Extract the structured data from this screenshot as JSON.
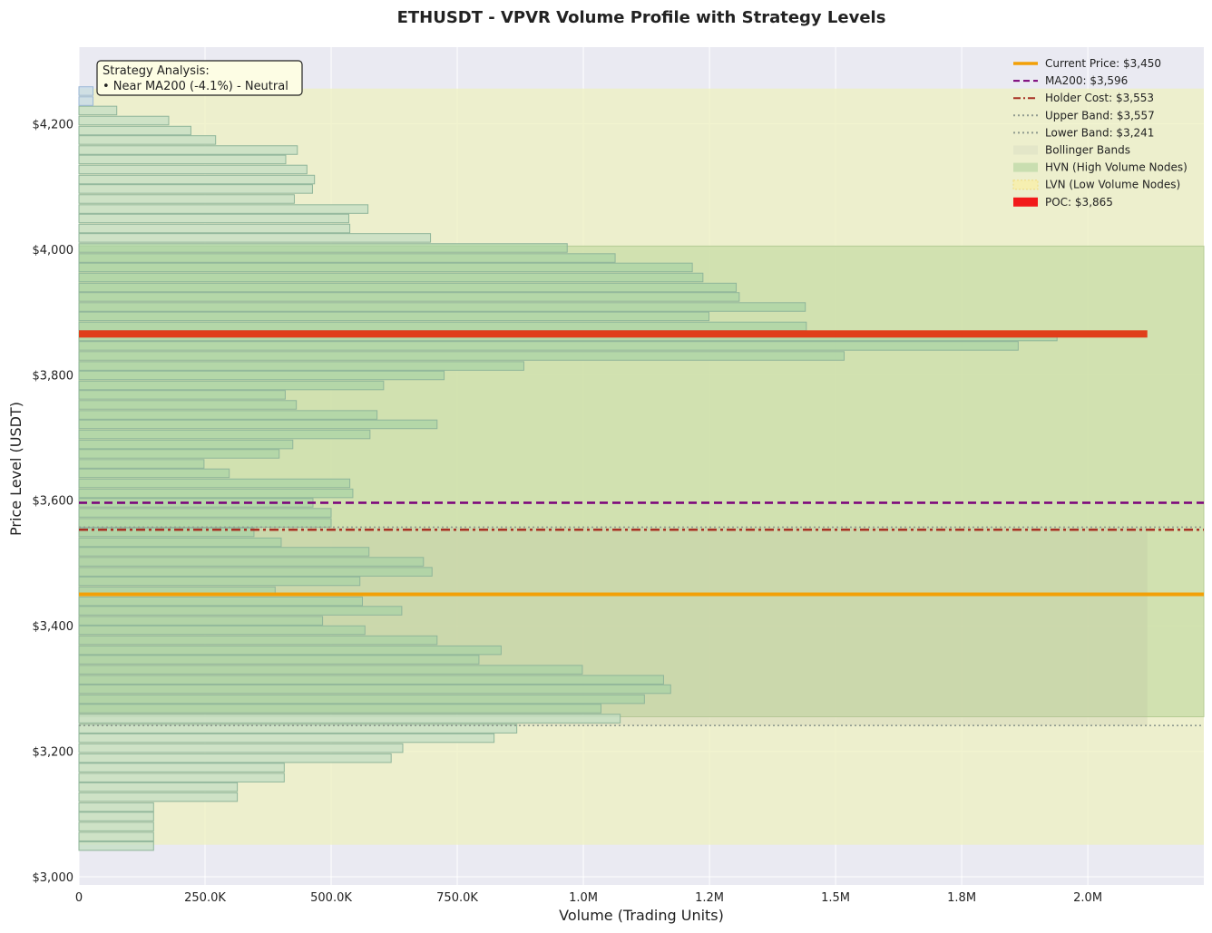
{
  "chart_data": {
    "type": "bar",
    "orientation": "horizontal",
    "title": "ETHUSDT - VPVR Volume Profile with Strategy Levels",
    "xlabel": "Volume (Trading Units)",
    "ylabel": "Price Level (USDT)",
    "xlim": [
      0,
      2230000
    ],
    "ylim": [
      2987,
      4322
    ],
    "x_ticks": [
      0,
      250000,
      500000,
      750000,
      1000000,
      1250000,
      1500000,
      1750000,
      2000000
    ],
    "x_tick_labels": [
      "0",
      "250.0K",
      "500.0K",
      "750.0K",
      "1.0M",
      "1.2M",
      "1.5M",
      "1.8M",
      "2.0M"
    ],
    "y_ticks": [
      3000,
      3200,
      3400,
      3600,
      3800,
      4000,
      4200
    ],
    "y_tick_labels": [
      "$3,000",
      "$3,200",
      "$3,400",
      "$3,600",
      "$3,800",
      "$4,000",
      "$4,200"
    ],
    "grid": true,
    "legend_placement": "top-right",
    "price_step": 15.6,
    "volume_profile": [
      {
        "price": 3049,
        "volume": 148000
      },
      {
        "price": 3064,
        "volume": 148000
      },
      {
        "price": 3080,
        "volume": 148000
      },
      {
        "price": 3096,
        "volume": 148000
      },
      {
        "price": 3111,
        "volume": 148000
      },
      {
        "price": 3127,
        "volume": 314000
      },
      {
        "price": 3143,
        "volume": 314000
      },
      {
        "price": 3158,
        "volume": 407000
      },
      {
        "price": 3174,
        "volume": 407000
      },
      {
        "price": 3189,
        "volume": 619000
      },
      {
        "price": 3205,
        "volume": 642000
      },
      {
        "price": 3221,
        "volume": 823000
      },
      {
        "price": 3236,
        "volume": 868000
      },
      {
        "price": 3252,
        "volume": 1073000
      },
      {
        "price": 3268,
        "volume": 1035000
      },
      {
        "price": 3283,
        "volume": 1121000
      },
      {
        "price": 3299,
        "volume": 1173000
      },
      {
        "price": 3314,
        "volume": 1159000
      },
      {
        "price": 3330,
        "volume": 998000
      },
      {
        "price": 3346,
        "volume": 793000
      },
      {
        "price": 3361,
        "volume": 837000
      },
      {
        "price": 3377,
        "volume": 710000
      },
      {
        "price": 3393,
        "volume": 567000
      },
      {
        "price": 3408,
        "volume": 483000
      },
      {
        "price": 3424,
        "volume": 640000
      },
      {
        "price": 3439,
        "volume": 562000
      },
      {
        "price": 3455,
        "volume": 389000
      },
      {
        "price": 3471,
        "volume": 557000
      },
      {
        "price": 3486,
        "volume": 700000
      },
      {
        "price": 3502,
        "volume": 683000
      },
      {
        "price": 3518,
        "volume": 575000
      },
      {
        "price": 3533,
        "volume": 401000
      },
      {
        "price": 3549,
        "volume": 347000
      },
      {
        "price": 3564,
        "volume": 500000
      },
      {
        "price": 3580,
        "volume": 500000
      },
      {
        "price": 3596,
        "volume": 464000
      },
      {
        "price": 3611,
        "volume": 543000
      },
      {
        "price": 3627,
        "volume": 537000
      },
      {
        "price": 3643,
        "volume": 298000
      },
      {
        "price": 3658,
        "volume": 248000
      },
      {
        "price": 3674,
        "volume": 397000
      },
      {
        "price": 3689,
        "volume": 424000
      },
      {
        "price": 3705,
        "volume": 577000
      },
      {
        "price": 3721,
        "volume": 710000
      },
      {
        "price": 3736,
        "volume": 591000
      },
      {
        "price": 3752,
        "volume": 431000
      },
      {
        "price": 3768,
        "volume": 409000
      },
      {
        "price": 3783,
        "volume": 604000
      },
      {
        "price": 3799,
        "volume": 724000
      },
      {
        "price": 3814,
        "volume": 882000
      },
      {
        "price": 3830,
        "volume": 1517000
      },
      {
        "price": 3846,
        "volume": 1862000
      },
      {
        "price": 3861,
        "volume": 1939000
      },
      {
        "price": 3877,
        "volume": 1442000
      },
      {
        "price": 3893,
        "volume": 1249000
      },
      {
        "price": 3908,
        "volume": 1440000
      },
      {
        "price": 3924,
        "volume": 1309000
      },
      {
        "price": 3939,
        "volume": 1303000
      },
      {
        "price": 3955,
        "volume": 1237000
      },
      {
        "price": 3971,
        "volume": 1216000
      },
      {
        "price": 3986,
        "volume": 1063000
      },
      {
        "price": 4002,
        "volume": 968000
      },
      {
        "price": 4018,
        "volume": 697000
      },
      {
        "price": 4033,
        "volume": 537000
      },
      {
        "price": 4049,
        "volume": 535000
      },
      {
        "price": 4064,
        "volume": 573000
      },
      {
        "price": 4080,
        "volume": 427000
      },
      {
        "price": 4096,
        "volume": 463000
      },
      {
        "price": 4111,
        "volume": 467000
      },
      {
        "price": 4127,
        "volume": 452000
      },
      {
        "price": 4143,
        "volume": 410000
      },
      {
        "price": 4158,
        "volume": 433000
      },
      {
        "price": 4174,
        "volume": 271000
      },
      {
        "price": 4189,
        "volume": 222000
      },
      {
        "price": 4205,
        "volume": 178000
      },
      {
        "price": 4221,
        "volume": 75000
      },
      {
        "price": 4236,
        "volume": 28000
      },
      {
        "price": 4252,
        "volume": 28000
      }
    ],
    "hvn_range": [
      3255,
      4005
    ],
    "bollinger_band_region": [
      3051,
      4256
    ],
    "value_area": {
      "price_range": [
        3241,
        3557
      ],
      "volume_extent": 2118000
    },
    "levels": [
      {
        "name": "Current Price: $3,450",
        "price": 3450,
        "color": "#f2a007",
        "style": "solid"
      },
      {
        "name": "MA200: $3,596",
        "price": 3596,
        "color": "#7a007a",
        "style": "dashed"
      },
      {
        "name": "Holder Cost: $3,553",
        "price": 3553,
        "color": "#a83224",
        "style": "dashdot"
      },
      {
        "name": "Upper Band: $3,557",
        "price": 3557,
        "color": "#8f9a8f",
        "style": "dotted"
      },
      {
        "name": "Lower Band: $3,241",
        "price": 3241,
        "color": "#8f9a8f",
        "style": "dotted"
      }
    ],
    "poc": {
      "name": "POC: $3,865",
      "price": 3865,
      "volume": 2118000,
      "color": "#e03e1a"
    },
    "legend": [
      {
        "label": "Current Price: $3,450",
        "kind": "line",
        "color": "#f2a007",
        "style": "solid"
      },
      {
        "label": "MA200: $3,596",
        "kind": "line",
        "color": "#7a007a",
        "style": "dashed"
      },
      {
        "label": "Holder Cost: $3,553",
        "kind": "line",
        "color": "#a83224",
        "style": "dashdot"
      },
      {
        "label": "Upper Band: $3,557",
        "kind": "line",
        "color": "#8f9a8f",
        "style": "dotted"
      },
      {
        "label": "Lower Band: $3,241",
        "kind": "line",
        "color": "#8f9a8f",
        "style": "dotted"
      },
      {
        "label": "Bollinger Bands",
        "kind": "patch",
        "color": "#e3e6c8",
        "style": "solid"
      },
      {
        "label": "HVN (High Volume Nodes)",
        "kind": "patch",
        "color": "#c9deb0",
        "style": "solid"
      },
      {
        "label": "LVN (Low Volume Nodes)",
        "kind": "patch",
        "color": "#f6efb0",
        "style": "dotted"
      },
      {
        "label": "POC: $3,865",
        "kind": "patch",
        "color": "#f21a1a",
        "style": "solid"
      }
    ],
    "annotation": {
      "title": "Strategy Analysis:",
      "line": "• Near MA200 (-4.1%) - Neutral"
    }
  }
}
